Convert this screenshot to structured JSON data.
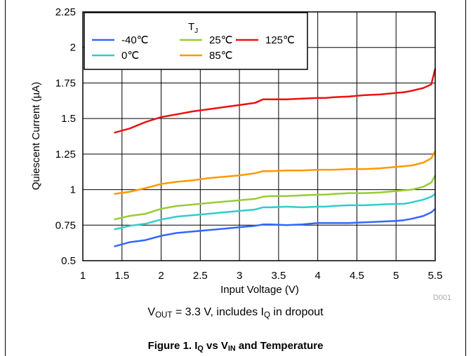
{
  "chart_data": {
    "type": "line",
    "xlabel": "Input Voltage (V)",
    "ylabel": "Quiescent Current (µA)",
    "xlim": [
      1,
      5.5
    ],
    "ylim": [
      0.5,
      2.25
    ],
    "x_ticks": [
      "1",
      "1.5",
      "2",
      "2.5",
      "3",
      "3.5",
      "4",
      "4.5",
      "5",
      "5.5"
    ],
    "y_ticks": [
      "0.5",
      "0.75",
      "1",
      "1.25",
      "1.5",
      "1.75",
      "2",
      "2.25"
    ],
    "grid": true,
    "legend_title_main": "T",
    "legend_title_sub": "J",
    "legend_position": "top-left",
    "watermark": "D001",
    "x": [
      1.4,
      1.6,
      1.8,
      2.0,
      2.2,
      2.4,
      2.6,
      2.8,
      3.0,
      3.2,
      3.3,
      3.4,
      3.6,
      3.8,
      4.0,
      4.1,
      4.2,
      4.4,
      4.6,
      4.8,
      5.0,
      5.1,
      5.2,
      5.35,
      5.45,
      5.5
    ],
    "series": [
      {
        "name": "-40℃",
        "color": "#3366ff",
        "values": [
          0.6,
          0.63,
          0.645,
          0.675,
          0.695,
          0.705,
          0.715,
          0.725,
          0.735,
          0.745,
          0.755,
          0.755,
          0.75,
          0.755,
          0.765,
          0.765,
          0.765,
          0.765,
          0.77,
          0.775,
          0.78,
          0.785,
          0.795,
          0.815,
          0.84,
          0.865
        ]
      },
      {
        "name": "0℃",
        "color": "#33cccc",
        "values": [
          0.72,
          0.745,
          0.76,
          0.79,
          0.81,
          0.82,
          0.83,
          0.84,
          0.85,
          0.86,
          0.875,
          0.875,
          0.88,
          0.875,
          0.88,
          0.88,
          0.885,
          0.89,
          0.89,
          0.895,
          0.9,
          0.9,
          0.91,
          0.93,
          0.95,
          0.97
        ]
      },
      {
        "name": "25℃",
        "color": "#99cc33",
        "values": [
          0.79,
          0.815,
          0.83,
          0.865,
          0.885,
          0.895,
          0.905,
          0.915,
          0.925,
          0.935,
          0.95,
          0.955,
          0.955,
          0.96,
          0.965,
          0.965,
          0.97,
          0.975,
          0.975,
          0.98,
          0.99,
          0.995,
          1.0,
          1.02,
          1.05,
          1.1
        ]
      },
      {
        "name": "85℃",
        "color": "#ff9900",
        "values": [
          0.97,
          0.985,
          1.01,
          1.04,
          1.055,
          1.065,
          1.08,
          1.09,
          1.1,
          1.115,
          1.13,
          1.13,
          1.135,
          1.135,
          1.14,
          1.14,
          1.14,
          1.145,
          1.145,
          1.15,
          1.16,
          1.165,
          1.17,
          1.19,
          1.22,
          1.27
        ]
      },
      {
        "name": "125℃",
        "color": "#ee1111",
        "values": [
          1.4,
          1.43,
          1.475,
          1.51,
          1.53,
          1.55,
          1.565,
          1.58,
          1.595,
          1.61,
          1.635,
          1.635,
          1.635,
          1.64,
          1.645,
          1.645,
          1.65,
          1.655,
          1.665,
          1.67,
          1.68,
          1.685,
          1.695,
          1.715,
          1.74,
          1.85
        ]
      }
    ]
  },
  "caption": {
    "vout_main": "V",
    "vout_sub": "OUT",
    "text_mid": " = 3.3 V, includes I",
    "iq_sub": "Q",
    "text_end": " in dropout"
  },
  "figure": {
    "prefix": "Figure 1. I",
    "iq_sub": "Q",
    "mid": " vs V",
    "vin_sub": "IN",
    "suffix": " and Temperature"
  }
}
